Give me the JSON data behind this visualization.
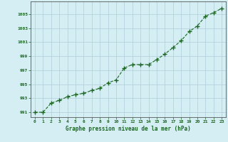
{
  "x": [
    0,
    1,
    2,
    3,
    4,
    5,
    6,
    7,
    8,
    9,
    10,
    11,
    12,
    13,
    14,
    15,
    16,
    17,
    18,
    19,
    20,
    21,
    22,
    23
  ],
  "y": [
    991.0,
    991.0,
    992.3,
    992.7,
    993.2,
    993.5,
    993.7,
    994.1,
    994.4,
    995.2,
    995.6,
    997.3,
    997.8,
    997.8,
    997.8,
    998.5,
    999.3,
    1000.2,
    1001.2,
    1002.5,
    1003.3,
    1004.7,
    1005.2,
    1005.8
  ],
  "line_color": "#1a6620",
  "marker": "+",
  "marker_color": "#1a6620",
  "background_color": "#d4eef4",
  "grid_color": "#b0ccd8",
  "xlabel": "Graphe pression niveau de la mer (hPa)",
  "xlabel_color": "#1a6620",
  "tick_color": "#1a6620",
  "ylabel_ticks": [
    991,
    993,
    995,
    997,
    999,
    1001,
    1003,
    1005
  ],
  "xlim": [
    -0.5,
    23.5
  ],
  "ylim": [
    990.3,
    1006.8
  ],
  "axes_color": "#1a6620",
  "spine_color": "#555555"
}
